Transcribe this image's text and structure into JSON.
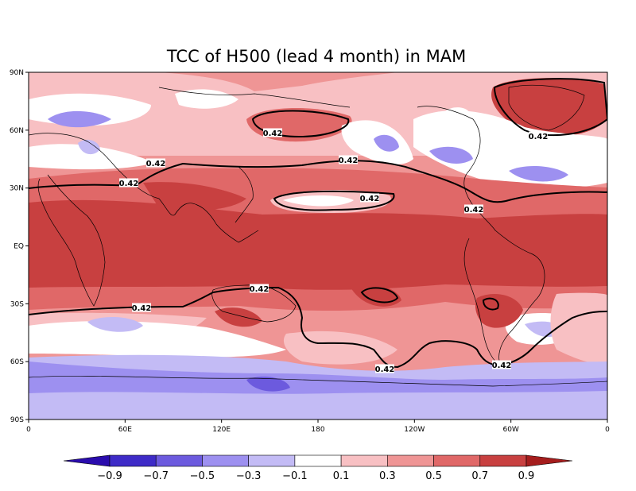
{
  "title": "TCC of H500 (lead 4 month) in MAM",
  "map": {
    "projection": "equirectangular",
    "lon_range": [
      0,
      360
    ],
    "lat_range": [
      -90,
      90
    ],
    "lat_ticks": [
      "90N",
      "60N",
      "30N",
      "EQ",
      "30S",
      "60S",
      "90S"
    ],
    "lon_ticks": [
      "0",
      "60E",
      "120E",
      "180",
      "120W",
      "60W",
      "0"
    ],
    "contour_line_value": "0.42",
    "colors": {
      "lt_-0.9": "#2a0cad",
      "-0.9_-0.7": "#3e2bc7",
      "-0.7_-0.5": "#6c5ade",
      "-0.5_-0.3": "#9d90f0",
      "-0.3_-0.1": "#c3bbf5",
      "-0.1_0.1": "#ffffff",
      "0.1_0.3": "#f8c0c3",
      "0.3_0.5": "#ef9595",
      "0.5_0.7": "#e06868",
      "0.7_0.9": "#c84040",
      "gt_0.9": "#a51d1d"
    }
  },
  "colorbar": {
    "tick_labels": [
      "−0.9",
      "−0.7",
      "−0.5",
      "−0.3",
      "−0.1",
      "0.1",
      "0.3",
      "0.5",
      "0.7",
      "0.9"
    ],
    "colors": [
      "#2a0cad",
      "#3e2bc7",
      "#6c5ade",
      "#9d90f0",
      "#c3bbf5",
      "#ffffff",
      "#f8c0c3",
      "#ef9595",
      "#e06868",
      "#c84040",
      "#a51d1d"
    ]
  }
}
